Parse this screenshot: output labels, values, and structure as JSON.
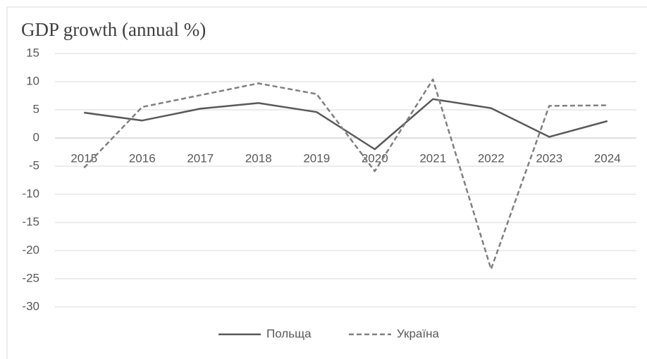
{
  "chart_data": {
    "type": "line",
    "title": "GDP growth (annual %)",
    "categories": [
      "2015",
      "2016",
      "2017",
      "2018",
      "2019",
      "2020",
      "2021",
      "2022",
      "2023",
      "2024"
    ],
    "series": [
      {
        "name": "Польща",
        "color": "#595959",
        "dash": false,
        "values": [
          4.5,
          3.1,
          5.2,
          6.2,
          4.6,
          -2.0,
          6.9,
          5.3,
          0.2,
          3.0
        ]
      },
      {
        "name": "Україна",
        "color": "#808080",
        "dash": true,
        "values": [
          -5.3,
          5.5,
          7.6,
          9.7,
          7.8,
          -5.9,
          10.4,
          -23.3,
          5.7,
          5.8
        ]
      }
    ],
    "ylim": [
      -30,
      15
    ],
    "yticks": [
      -30,
      -25,
      -20,
      -15,
      -10,
      -5,
      0,
      5,
      10,
      15
    ],
    "grid": true,
    "legend": "bottom"
  }
}
